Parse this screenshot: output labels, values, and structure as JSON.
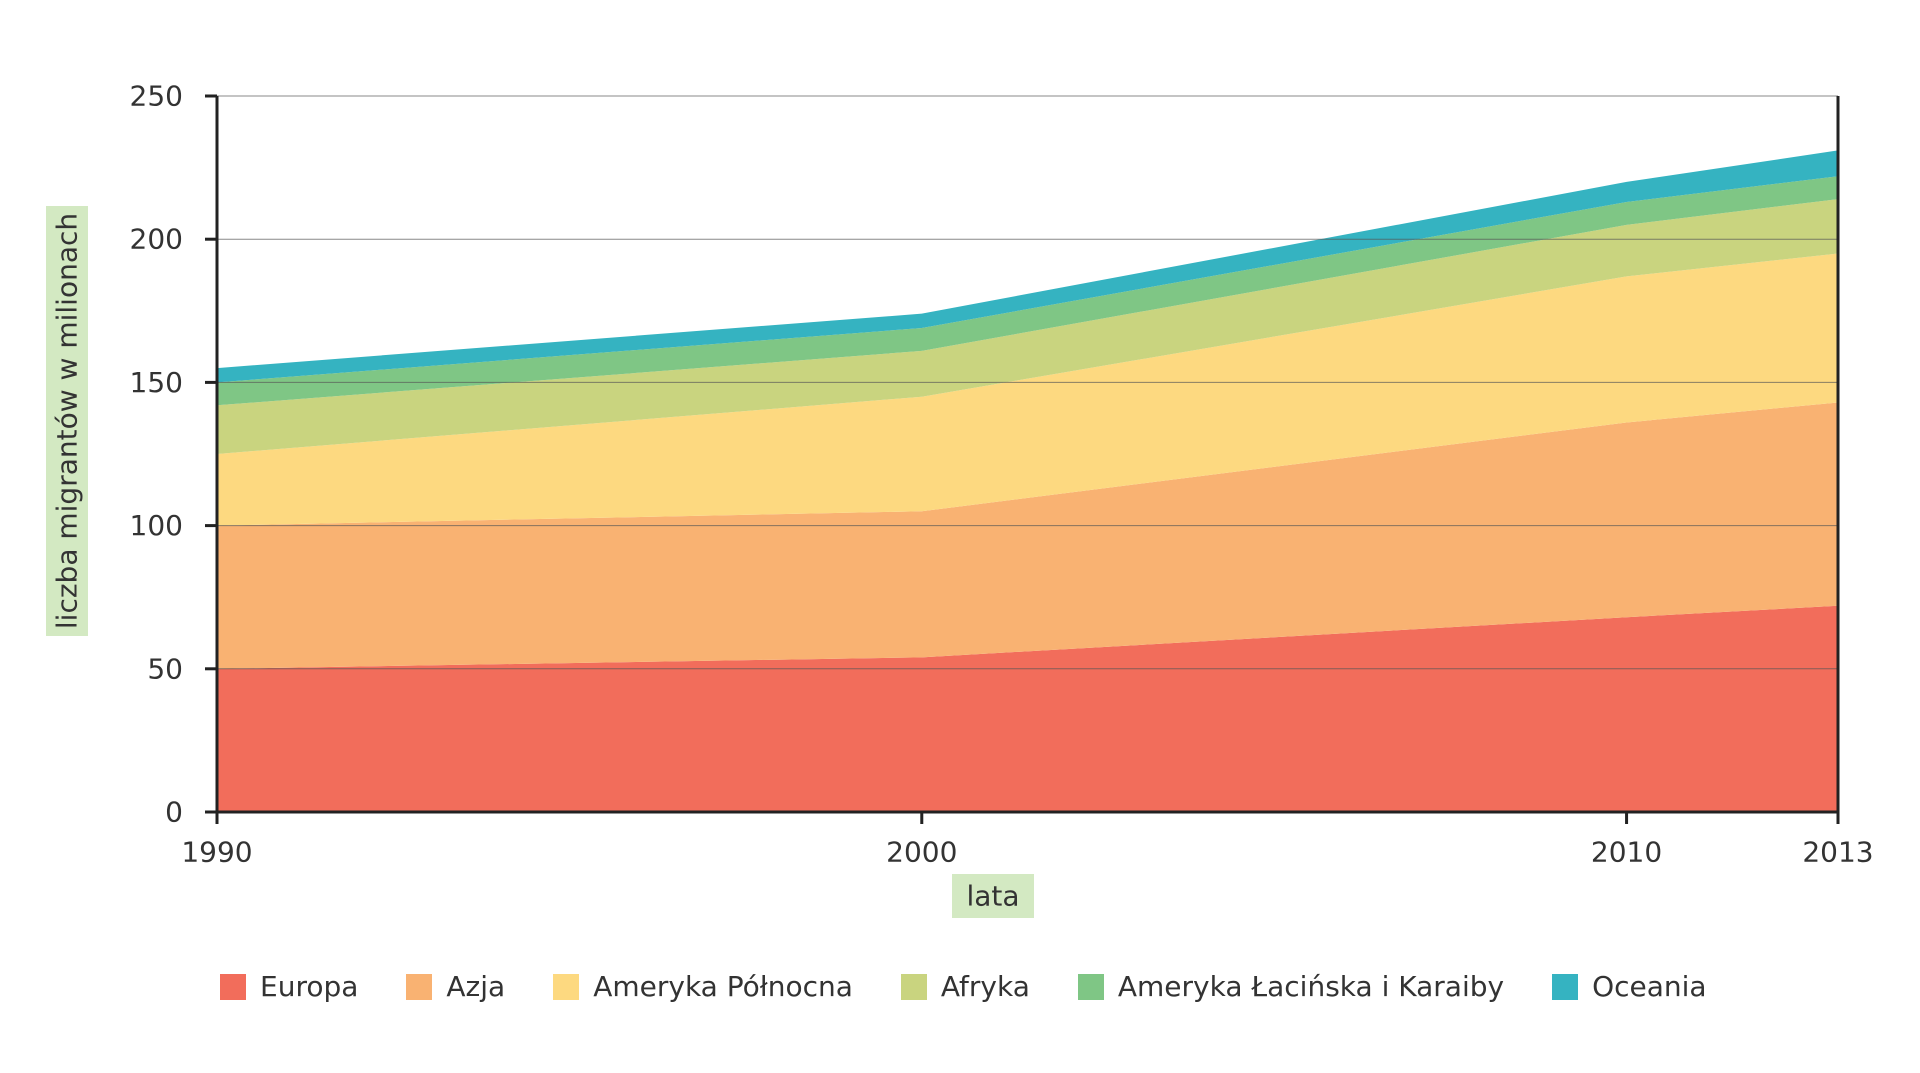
{
  "chart_data": {
    "type": "area",
    "stacked": true,
    "x": [
      1990,
      2000,
      2010,
      2013
    ],
    "xlabel": "lata",
    "ylabel": "liczba migrantów w milionach",
    "ylim": [
      0,
      250
    ],
    "yticks": [
      0,
      50,
      100,
      150,
      200,
      250
    ],
    "grid": true,
    "legend_position": "bottom",
    "series": [
      {
        "name": "Europa",
        "color": "#f26d5b",
        "values": [
          50,
          54,
          68,
          72
        ]
      },
      {
        "name": "Azja",
        "color": "#f9b272",
        "values": [
          50,
          51,
          68,
          71
        ]
      },
      {
        "name": "Ameryka Północna",
        "color": "#fdd980",
        "values": [
          25,
          40,
          51,
          52
        ]
      },
      {
        "name": "Afryka",
        "color": "#c9d47f",
        "values": [
          17,
          16,
          18,
          19
        ]
      },
      {
        "name": "Ameryka Łacińska i Karaiby",
        "color": "#7fc685",
        "values": [
          8,
          8,
          8,
          8
        ]
      },
      {
        "name": "Oceania",
        "color": "#35b3c1",
        "values": [
          5,
          5,
          7,
          9
        ]
      }
    ]
  }
}
